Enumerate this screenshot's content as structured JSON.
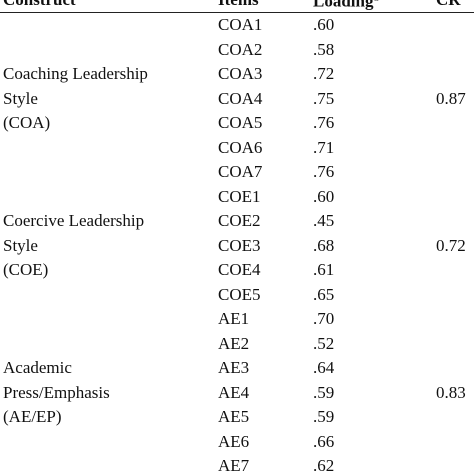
{
  "table": {
    "header": {
      "construct": "Construct",
      "items": "Items",
      "loading": "Loading",
      "loading_note": "a",
      "cr": "CR"
    },
    "groups": [
      {
        "construct_lines": [
          "Coaching Leadership",
          "Style",
          "(COA)"
        ],
        "cr": "0.87",
        "rows": [
          [
            "COA1",
            ".60"
          ],
          [
            "COA2",
            ".58"
          ],
          [
            "COA3",
            ".72"
          ],
          [
            "COA4",
            ".75"
          ],
          [
            "COA5",
            ".76"
          ],
          [
            "COA6",
            ".71"
          ],
          [
            "COA7",
            ".76"
          ]
        ]
      },
      {
        "construct_lines": [
          "Coercive Leadership",
          "Style",
          "(COE)"
        ],
        "cr": "0.72",
        "rows": [
          [
            "COE1",
            ".60"
          ],
          [
            "COE2",
            ".45"
          ],
          [
            "COE3",
            ".68"
          ],
          [
            "COE4",
            ".61"
          ],
          [
            "COE5",
            ".65"
          ]
        ]
      },
      {
        "construct_lines": [
          "Academic",
          "Press/Emphasis",
          "(AE/EP)"
        ],
        "cr": "0.83",
        "rows": [
          [
            "AE1",
            ".70"
          ],
          [
            "AE2",
            ".52"
          ],
          [
            "AE3",
            ".64"
          ],
          [
            "AE4",
            ".59"
          ],
          [
            "AE5",
            ".59"
          ],
          [
            "AE6",
            ".66"
          ],
          [
            "AE7",
            ".62"
          ]
        ]
      }
    ]
  }
}
